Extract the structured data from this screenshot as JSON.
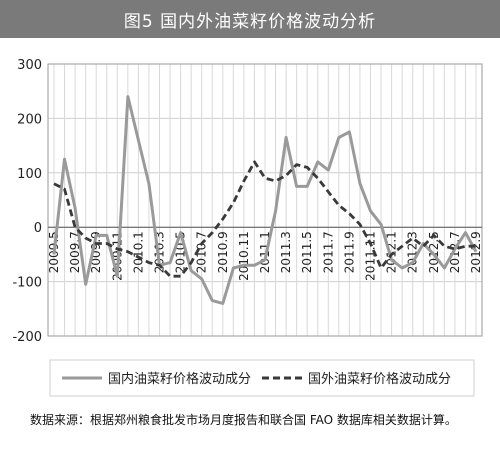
{
  "figure_title": "图5  国内外油菜籽价格波动分析",
  "caption": "数据来源：根据郑州粮食批发市场月度报告和联合国 FAO 数据库相关数据计算。",
  "chart_data": {
    "type": "line",
    "title": "",
    "xlabel": "",
    "ylabel": "",
    "ylim": [
      -200,
      300
    ],
    "yticks": [
      -200,
      -100,
      0,
      100,
      200,
      300
    ],
    "grid": true,
    "legend_position": "bottom",
    "xticks": [
      "2009.5",
      "2009.7",
      "2009.9",
      "2009.11",
      "2010.1",
      "2010.3",
      "2010.5",
      "2010.7",
      "2010.9",
      "2010.11",
      "2011.1",
      "2011.3",
      "2011.5",
      "2011.7",
      "2011.9",
      "2011.11",
      "2012.1",
      "2012.3",
      "2012.5",
      "2012.7",
      "2012.9"
    ],
    "x": [
      "2009.5",
      "2009.6",
      "2009.7",
      "2009.8",
      "2009.9",
      "2009.10",
      "2009.11",
      "2009.12",
      "2010.1",
      "2010.2",
      "2010.3",
      "2010.4",
      "2010.5",
      "2010.6",
      "2010.7",
      "2010.8",
      "2010.9",
      "2010.10",
      "2010.11",
      "2010.12",
      "2011.1",
      "2011.2",
      "2011.3",
      "2011.4",
      "2011.5",
      "2011.6",
      "2011.7",
      "2011.8",
      "2011.9",
      "2011.10",
      "2011.11",
      "2011.12",
      "2012.1",
      "2012.2",
      "2012.3",
      "2012.4",
      "2012.5",
      "2012.6",
      "2012.7",
      "2012.8",
      "2012.9"
    ],
    "series": [
      {
        "name": "国内油菜籽价格波动成分",
        "color": "#9a9a9a",
        "dash": false,
        "values": [
          -50,
          125,
          35,
          -105,
          -15,
          -15,
          -90,
          240,
          160,
          80,
          -70,
          -65,
          -10,
          -80,
          -95,
          -135,
          -140,
          -75,
          -70,
          -70,
          -60,
          30,
          165,
          75,
          75,
          120,
          105,
          165,
          175,
          80,
          30,
          5,
          -60,
          -75,
          -65,
          -30,
          -50,
          -75,
          -40,
          -10,
          -45
        ]
      },
      {
        "name": "国外油菜籽价格波动成分",
        "color": "#3a3a3a",
        "dash": true,
        "values": [
          80,
          70,
          0,
          -20,
          -30,
          -30,
          -40,
          -45,
          -55,
          -65,
          -70,
          -90,
          -90,
          -65,
          -30,
          -10,
          15,
          45,
          85,
          120,
          90,
          85,
          95,
          115,
          110,
          90,
          65,
          40,
          25,
          5,
          -30,
          -75,
          -50,
          -35,
          -20,
          -35,
          -15,
          -35,
          -40,
          -35,
          -35
        ]
      }
    ]
  }
}
